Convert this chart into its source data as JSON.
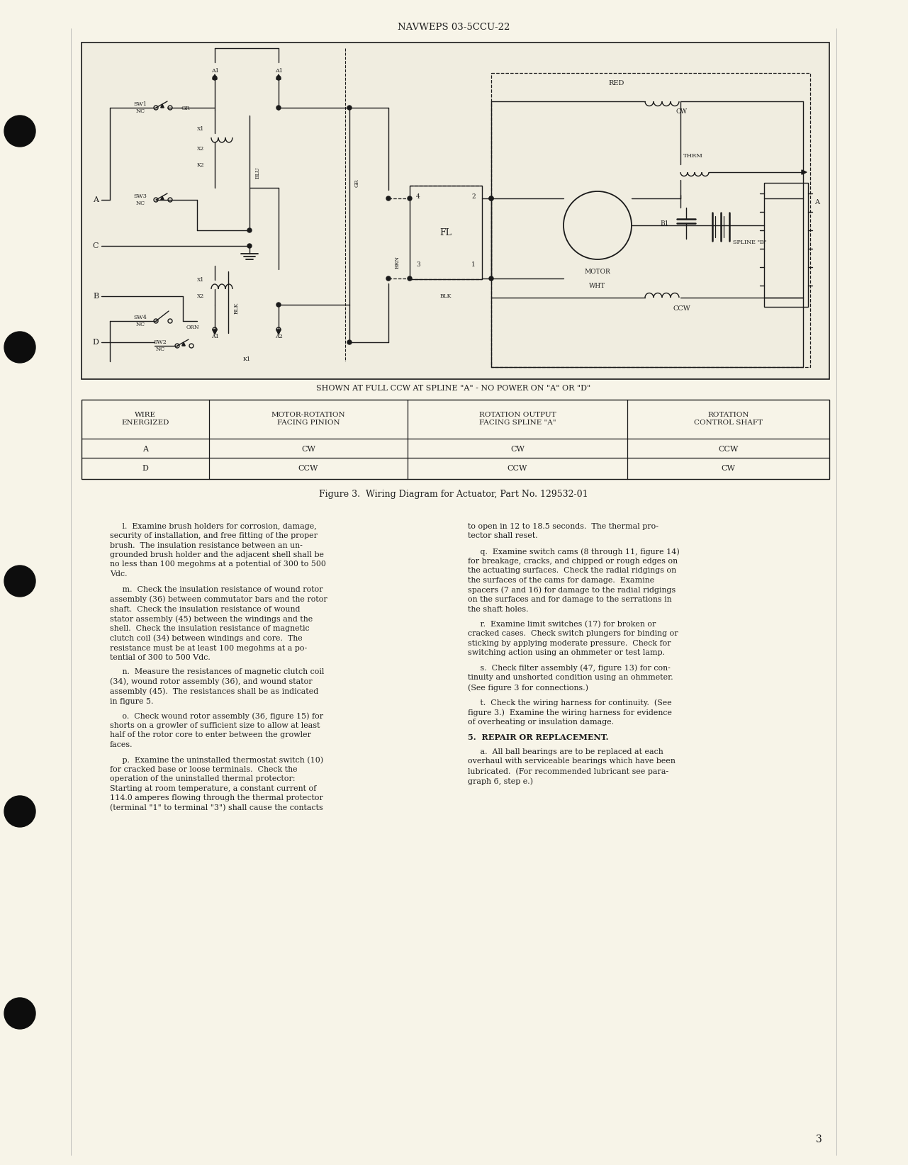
{
  "page_bg": "#f7f4e8",
  "header_text": "NAVWEPS 03-5CCU-22",
  "page_number": "3",
  "diagram_caption": "Figure 3.  Wiring Diagram for Actuator, Part No. 129532-01",
  "diagram_subtitle": "SHOWN AT FULL CCW AT SPLINE \"A\" - NO POWER ON \"A\" OR \"D\"",
  "table_headers": [
    "WIRE\nENERGIZED",
    "MOTOR-ROTATION\nFACING PINION",
    "ROTATION OUTPUT\nFACING SPLINE \"A\"",
    "ROTATION\nCONTROL SHAFT"
  ],
  "table_rows": [
    [
      "A",
      "CW",
      "CW",
      "CCW"
    ],
    [
      "D",
      "CCW",
      "CCW",
      "CW"
    ]
  ],
  "body_col1": [
    "     l.  Examine brush holders for corrosion, damage,\nsecurity of installation, and free fitting of the proper\nbrush.  The insulation resistance between an un-\ngrounded brush holder and the adjacent shell shall be\nno less than 100 megohms at a potential of 300 to 500\nVdc.",
    "     m.  Check the insulation resistance of wound rotor\nassembly (36) between commutator bars and the rotor\nshaft.  Check the insulation resistance of wound\nstator assembly (45) between the windings and the\nshell.  Check the insulation resistance of magnetic\nclutch coil (34) between windings and core.  The\nresistance must be at least 100 megohms at a po-\ntential of 300 to 500 Vdc.",
    "     n.  Measure the resistances of magnetic clutch coil\n(34), wound rotor assembly (36), and wound stator\nassembly (45).  The resistances shall be as indicated\nin figure 5.",
    "     o.  Check wound rotor assembly (36, figure 15) for\nshorts on a growler of sufficient size to allow at least\nhalf of the rotor core to enter between the growler\nfaces.",
    "     p.  Examine the uninstalled thermostat switch (10)\nfor cracked base or loose terminals.  Check the\noperation of the uninstalled thermal protector:\nStarting at room temperature, a constant current of\n114.0 amperes flowing through the thermal protector\n(terminal \"1\" to terminal \"3\") shall cause the contacts"
  ],
  "body_col2": [
    "to open in 12 to 18.5 seconds.  The thermal pro-\ntector shall reset.",
    "     q.  Examine switch cams (8 through 11, figure 14)\nfor breakage, cracks, and chipped or rough edges on\nthe actuating surfaces.  Check the radial ridgings on\nthe surfaces of the cams for damage.  Examine\nspacers (7 and 16) for damage to the radial ridgings\non the surfaces and for damage to the serrations in\nthe shaft holes.",
    "     r.  Examine limit switches (17) for broken or\ncracked cases.  Check switch plungers for binding or\nsticking by applying moderate pressure.  Check for\nswitching action using an ohmmeter or test lamp.",
    "     s.  Check filter assembly (47, figure 13) for con-\ntinuity and unshorted condition using an ohmmeter.\n(See figure 3 for connections.)",
    "     t.  Check the wiring harness for continuity.  (See\nfigure 3.)  Examine the wiring harness for evidence\nof overheating or insulation damage.",
    "5.  REPAIR OR REPLACEMENT.",
    "     a.  All ball bearings are to be replaced at each\noverhaul with serviceable bearings which have been\nlubricated.  (For recommended lubricant see para-\ngraph 6, step e.)"
  ],
  "text_color": "#1e1e1e",
  "line_color": "#1a1a1a",
  "diagram_bg": "#f0ede0"
}
